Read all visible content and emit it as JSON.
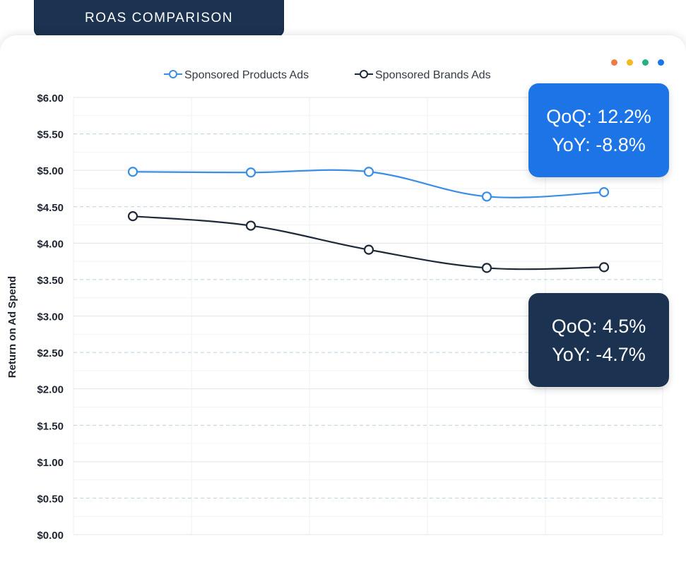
{
  "header": {
    "tab_label": "ROAS COMPARISON"
  },
  "window_dots": {
    "colors": [
      "#f07a45",
      "#f5b91e",
      "#23b27c",
      "#1c74e6"
    ]
  },
  "callouts": {
    "products": {
      "qoq": "QoQ: 12.2%",
      "yoy": "YoY: -8.8%",
      "color": "#1c74e6"
    },
    "brands": {
      "qoq": "QoQ: 4.5%",
      "yoy": "YoY: -4.7%",
      "color": "#1b3350"
    }
  },
  "chart_data": {
    "type": "line",
    "title": "",
    "xlabel": "",
    "ylabel": "Return on Ad Spend",
    "ylim": [
      0,
      6
    ],
    "y_ticks": [
      "$0.00",
      "$0.50",
      "$1.00",
      "$1.50",
      "$2.00",
      "$2.50",
      "$3.00",
      "$3.50",
      "$4.00",
      "$4.50",
      "$5.00",
      "$5.50",
      "$6.00"
    ],
    "x": [
      1,
      2,
      3,
      4,
      5
    ],
    "series": [
      {
        "name": "Sponsored Products Ads",
        "color": "#3a8ee6",
        "values": [
          4.98,
          4.97,
          4.98,
          4.64,
          4.7
        ]
      },
      {
        "name": "Sponsored Brands Ads",
        "color": "#1c2a3a",
        "values": [
          4.37,
          4.24,
          3.91,
          3.66,
          3.67
        ]
      }
    ],
    "legend_position": "top-center",
    "grid": true
  }
}
